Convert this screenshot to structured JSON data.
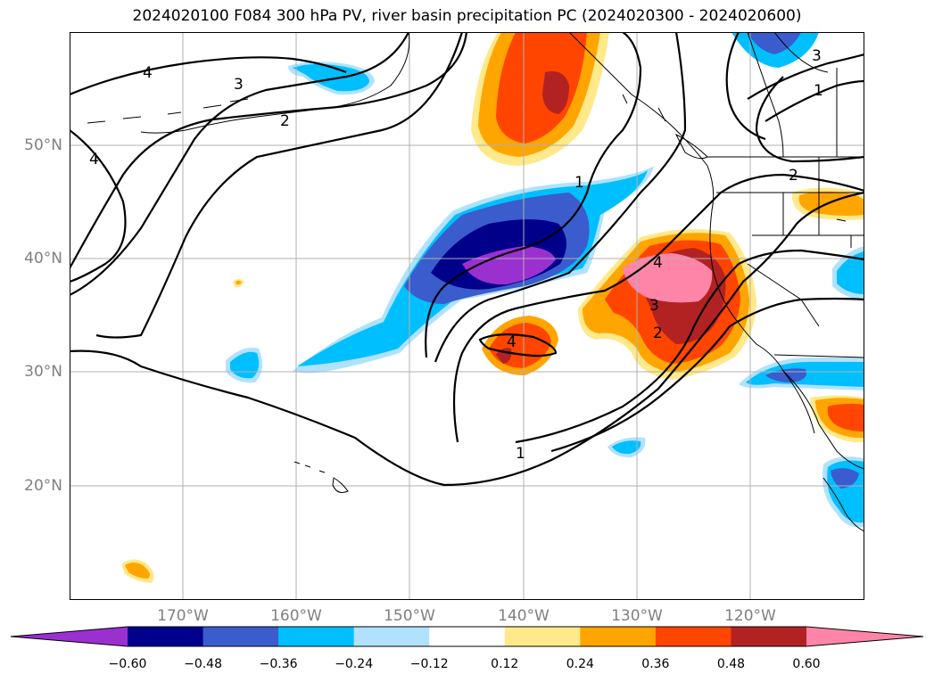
{
  "title": "2024020100 F084 300 hPa PV, river basin precipitation PC (2024020300 - 2024020600)",
  "lat_labels": [
    "50°N",
    "40°N",
    "30°N",
    "20°N"
  ],
  "lon_labels": [
    "170°W",
    "160°W",
    "150°W",
    "140°W",
    "130°W",
    "120°W"
  ],
  "colorbar": {
    "ticks": [
      "−0.60",
      "−0.48",
      "−0.36",
      "−0.24",
      "−0.12",
      "0.12",
      "0.24",
      "0.36",
      "0.48",
      "0.60"
    ],
    "colors": [
      "#9b30d0",
      "#00008b",
      "#3a5ccc",
      "#00bfff",
      "#b0e2ff",
      "#ffffff",
      "#ffe98a",
      "#ffa500",
      "#ff4500",
      "#b22222",
      "#ff85a8"
    ]
  },
  "contour_labels": [
    "4",
    "3",
    "2",
    "4",
    "1",
    "3",
    "1",
    "2",
    "4",
    "4",
    "3",
    "2",
    "1"
  ],
  "chart_data": {
    "type": "map",
    "projection": "plate carree",
    "extent": {
      "lon_min": -180,
      "lon_max": -110,
      "lat_min": 10,
      "lat_max": 60
    },
    "gridlines": true,
    "grid_lons": [
      -170,
      -160,
      -150,
      -140,
      -130,
      -120
    ],
    "grid_lats": [
      20,
      30,
      40,
      50
    ],
    "contour_field": "300 hPa PV",
    "contour_levels": [
      1,
      2,
      3,
      4
    ],
    "shaded_field": "river basin precipitation PC",
    "shading_levels": [
      -0.6,
      -0.48,
      -0.36,
      -0.24,
      -0.12,
      0.12,
      0.24,
      0.36,
      0.48,
      0.6
    ],
    "shaded_features": [
      {
        "lon": -140,
        "lat": 55,
        "value": 0.48
      },
      {
        "lon": -142.5,
        "lat": 39,
        "value": -0.6
      },
      {
        "lon": -131,
        "lat": 38,
        "value": 0.6
      },
      {
        "lon": -142,
        "lat": 31.5,
        "value": 0.36
      },
      {
        "lon": -156,
        "lat": 56,
        "value": -0.24
      },
      {
        "lon": -116,
        "lat": 58.5,
        "value": -0.36
      },
      {
        "lon": -115,
        "lat": 44,
        "value": 0.24
      },
      {
        "lon": -166,
        "lat": 30.5,
        "value": -0.24
      },
      {
        "lon": -114,
        "lat": 29.5,
        "value": -0.36
      },
      {
        "lon": -112,
        "lat": 26,
        "value": 0.48
      },
      {
        "lon": -113,
        "lat": 19,
        "value": -0.36
      },
      {
        "lon": -132,
        "lat": 23.5,
        "value": -0.24
      },
      {
        "lon": -175,
        "lat": 12.5,
        "value": 0.36
      },
      {
        "lon": -165,
        "lat": 38,
        "value": 0.24
      }
    ]
  }
}
